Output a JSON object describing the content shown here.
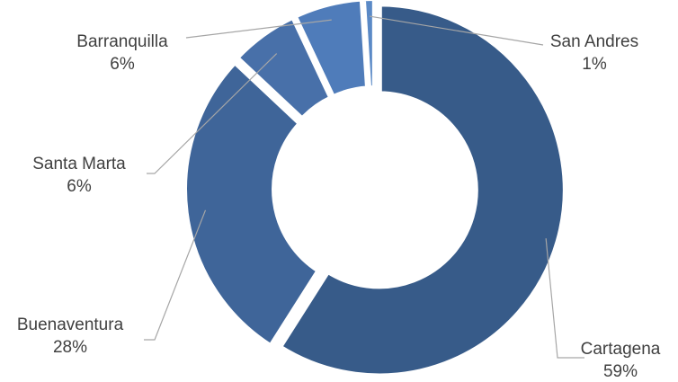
{
  "chart_data": {
    "type": "pie",
    "subtype": "doughnut",
    "start_angle_deg": 0,
    "direction": "clockwise",
    "legend": "none",
    "slices": [
      {
        "label": "Cartagena",
        "pct_text": "59%",
        "value": 59,
        "color": "#375B89"
      },
      {
        "label": "Buenaventura",
        "pct_text": "28%",
        "value": 28,
        "color": "#3F6599"
      },
      {
        "label": "Santa Marta",
        "pct_text": "6%",
        "value": 6,
        "color": "#4870A9"
      },
      {
        "label": "Barranquilla",
        "pct_text": "6%",
        "value": 6,
        "color": "#4F7CBA"
      },
      {
        "label": "San Andres",
        "pct_text": "1%",
        "value": 1,
        "color": "#5A89C6"
      }
    ]
  }
}
